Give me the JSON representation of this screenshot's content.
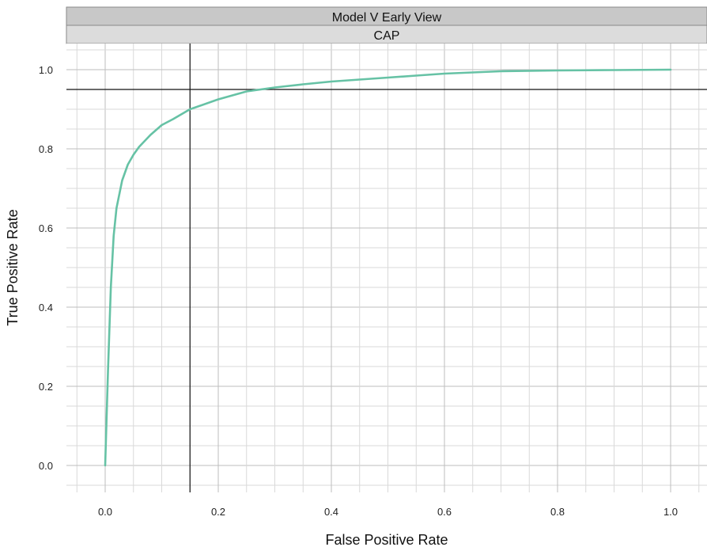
{
  "strip_labels": {
    "outer": "Model V Early View",
    "inner": "CAP"
  },
  "chart_data": {
    "type": "line",
    "xlabel": "False Positive Rate",
    "ylabel": "True Positive Rate",
    "xlim": [
      -0.07,
      1.07
    ],
    "ylim": [
      -0.07,
      1.07
    ],
    "grid": true,
    "x_ticks": [
      "0.0",
      "0.2",
      "0.4",
      "0.6",
      "0.8",
      "1.0"
    ],
    "y_ticks": [
      "0.0",
      "0.2",
      "0.4",
      "0.6",
      "0.8",
      "1.0"
    ],
    "reference_lines": {
      "vertical_x": 0.15,
      "horizontal_y": 0.95
    },
    "series": [
      {
        "color": "#66c2a5",
        "x": [
          0.0,
          0.005,
          0.01,
          0.015,
          0.02,
          0.03,
          0.04,
          0.05,
          0.06,
          0.08,
          0.1,
          0.12,
          0.15,
          0.2,
          0.25,
          0.3,
          0.35,
          0.4,
          0.45,
          0.5,
          0.55,
          0.6,
          0.65,
          0.7,
          0.8,
          0.9,
          1.0
        ],
        "y": [
          0.0,
          0.24,
          0.45,
          0.58,
          0.65,
          0.72,
          0.76,
          0.785,
          0.805,
          0.835,
          0.86,
          0.875,
          0.9,
          0.925,
          0.945,
          0.955,
          0.963,
          0.97,
          0.975,
          0.98,
          0.985,
          0.99,
          0.993,
          0.996,
          0.998,
          0.999,
          1.0
        ]
      }
    ]
  }
}
